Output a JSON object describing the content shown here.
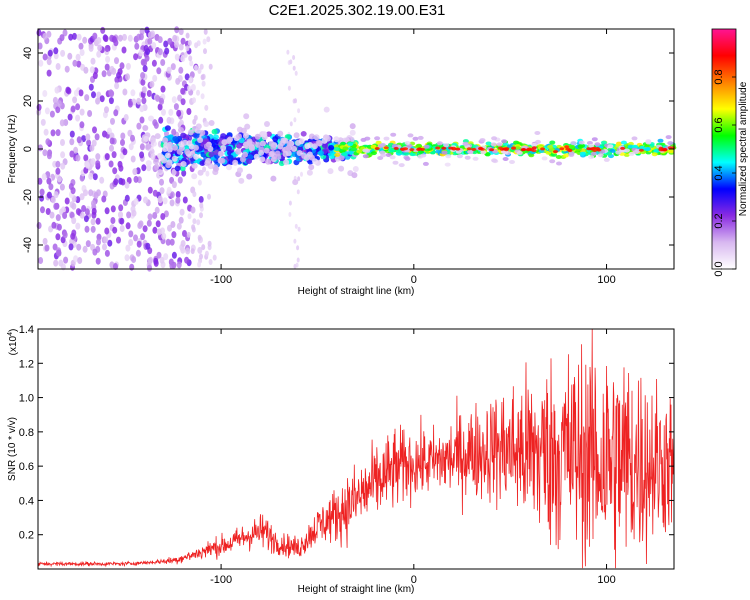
{
  "chart_data": [
    {
      "type": "heatmap",
      "title": "C2E1.2025.302.19.00.E31",
      "xlabel": "Height of straight line (km)",
      "ylabel": "Frequency (Hz)",
      "xlim": [
        -195,
        135
      ],
      "ylim": [
        -50,
        50
      ],
      "x_ticks": [
        -100,
        0,
        100
      ],
      "x_tick_labels": [
        "-100",
        "0",
        "100"
      ],
      "y_ticks": [
        -40,
        -20,
        0,
        20,
        40
      ],
      "y_tick_labels": [
        "-40",
        "-20",
        "0",
        "20",
        "40"
      ],
      "colorbar": {
        "label": "Normalized spectral amplitude",
        "range": [
          0,
          1
        ],
        "ticks": [
          0.0,
          0.2,
          0.4,
          0.6,
          0.8
        ],
        "tick_labels": [
          "0.0",
          "0.2",
          "0.4",
          "0.6",
          "0.8"
        ],
        "colors": [
          "#ffffff",
          "#d8b8f0",
          "#8a2be2",
          "#0000ff",
          "#00ffff",
          "#00ff00",
          "#ffff00",
          "#ff8000",
          "#ff0000",
          "#ff1493"
        ]
      },
      "features": [
        {
          "region": "scattered noise",
          "x_range": [
            -195,
            -115
          ],
          "freq_range": [
            -50,
            50
          ],
          "amplitude": 0.15
        },
        {
          "region": "signal onset",
          "x_range": [
            -130,
            -30
          ],
          "freq_range": [
            -10,
            10
          ],
          "amplitude": 0.35
        },
        {
          "region": "narrow carrier",
          "x_range": [
            -30,
            135
          ],
          "freq_range": [
            -2,
            2
          ],
          "amplitude": 0.9
        }
      ]
    },
    {
      "type": "line",
      "xlabel": "Height of straight line (km)",
      "ylabel": "SNR (10 * v/v)",
      "y_multiplier": "(x10",
      "y_multiplier_exp": "4",
      "y_multiplier_close": ")",
      "xlim": [
        -195,
        135
      ],
      "ylim": [
        0,
        1.4
      ],
      "x_ticks": [
        -100,
        0,
        100
      ],
      "x_tick_labels": [
        "-100",
        "0",
        "100"
      ],
      "y_ticks": [
        0.2,
        0.4,
        0.6,
        0.8,
        1.0,
        1.2,
        1.4
      ],
      "y_tick_labels": [
        "0.2",
        "0.4",
        "0.6",
        "0.8",
        "1.0",
        "1.2",
        "1.4"
      ],
      "series": [
        {
          "name": "SNR",
          "color": "#ee2222",
          "x": [
            -195,
            -180,
            -165,
            -150,
            -135,
            -125,
            -115,
            -105,
            -95,
            -85,
            -78,
            -70,
            -60,
            -50,
            -40,
            -30,
            -20,
            -10,
            0,
            10,
            20,
            30,
            40,
            50,
            60,
            70,
            80,
            90,
            100,
            110,
            120,
            130,
            135
          ],
          "mean": [
            0.03,
            0.03,
            0.03,
            0.03,
            0.04,
            0.05,
            0.08,
            0.12,
            0.15,
            0.2,
            0.22,
            0.15,
            0.12,
            0.25,
            0.32,
            0.4,
            0.5,
            0.58,
            0.62,
            0.62,
            0.65,
            0.68,
            0.7,
            0.7,
            0.68,
            0.68,
            0.68,
            0.66,
            0.64,
            0.62,
            0.62,
            0.62,
            0.62
          ],
          "spread": [
            0.01,
            0.01,
            0.01,
            0.01,
            0.01,
            0.02,
            0.03,
            0.05,
            0.06,
            0.08,
            0.1,
            0.06,
            0.06,
            0.1,
            0.15,
            0.2,
            0.2,
            0.22,
            0.18,
            0.18,
            0.22,
            0.25,
            0.28,
            0.35,
            0.45,
            0.5,
            0.55,
            0.6,
            0.65,
            0.6,
            0.5,
            0.4,
            0.35
          ]
        }
      ]
    }
  ]
}
